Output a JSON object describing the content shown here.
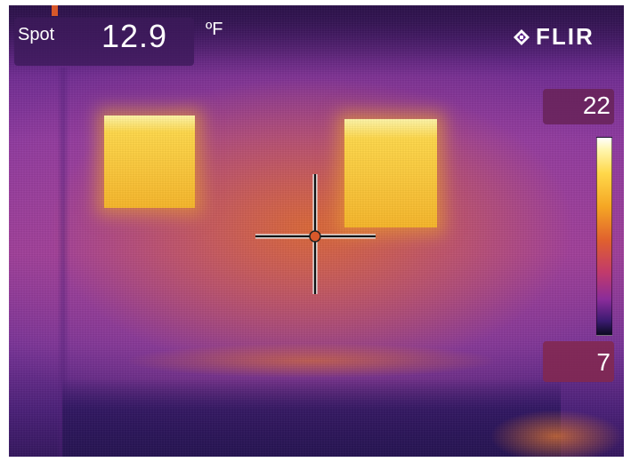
{
  "readout": {
    "mode_label": "Spot",
    "temperature": "12.9",
    "unit": "ºF"
  },
  "brand": {
    "logo_text": "FLIR"
  },
  "scale": {
    "max": "22",
    "min": "7"
  },
  "icons": {
    "brand_mark": "flir-diamond-icon",
    "crosshair": "crosshair-icon"
  },
  "colors": {
    "palette_hot": "#ffd84a",
    "palette_warm": "#e0602e",
    "palette_cool": "#8a2c9a",
    "palette_cold": "#3a1a70",
    "spot_marker": "#d8582a"
  }
}
